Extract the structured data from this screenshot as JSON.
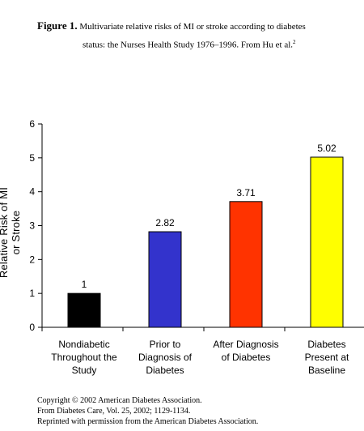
{
  "caption": {
    "figure_label": "Figure 1.",
    "line1": "Multivariate relative risks of MI or stroke according to diabetes",
    "line2": "status: the Nurses Health Study 1976–1996. From Hu et al.",
    "superscript": "2"
  },
  "footer": {
    "copyright": "Copyright © 2002 American Diabetes Association.",
    "source": "From Diabetes Care, Vol. 25, 2002; 1129-1134.",
    "permission": "Reprinted with permission from the American Diabetes Association."
  },
  "chart_data": {
    "type": "bar",
    "categories": [
      "Nondiabetic Throughout the Study",
      "Prior to Diagnosis of Diabetes",
      "After Diagnosis of Diabetes",
      "Diabetes Present at Baseline"
    ],
    "category_lines": [
      [
        "Nondiabetic",
        "Throughout the",
        "Study"
      ],
      [
        "Prior to",
        "Diagnosis of",
        "Diabetes"
      ],
      [
        "After Diagnosis",
        "of Diabetes"
      ],
      [
        "Diabetes",
        "Present at",
        "Baseline"
      ]
    ],
    "values": [
      1,
      2.82,
      3.71,
      5.02
    ],
    "data_labels": [
      "1",
      "2.82",
      "3.71",
      "5.02"
    ],
    "colors": [
      "#000000",
      "#3333cc",
      "#ff3300",
      "#ffff00"
    ],
    "ylabel": "Relative Risk of MI or Stroke",
    "xlabel": "",
    "ylim": [
      0,
      6
    ],
    "yticks": [
      0,
      1,
      2,
      3,
      4,
      5,
      6
    ],
    "grid": false,
    "legend": "none"
  }
}
